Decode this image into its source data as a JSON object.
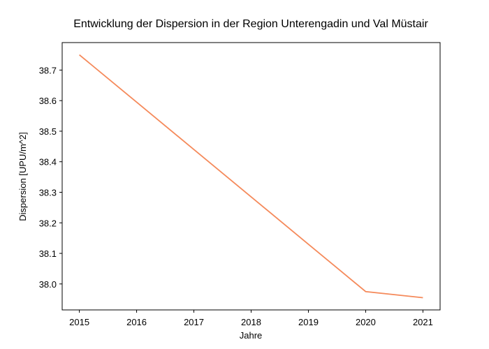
{
  "chart_data": {
    "type": "line",
    "title": "Entwicklung der Dispersion in der Region Unterengadin und Val Müstair",
    "xlabel": "Jahre",
    "ylabel": "Dispersion [UPU/m^2]",
    "x": [
      2015,
      2016,
      2017,
      2018,
      2019,
      2020,
      2021
    ],
    "series": [
      {
        "values": [
          38.75,
          38.595,
          38.44,
          38.285,
          38.13,
          37.975,
          37.955
        ],
        "color": "#f58a5b"
      }
    ],
    "xticks": [
      "2015",
      "2016",
      "2017",
      "2018",
      "2019",
      "2020",
      "2021"
    ],
    "yticks": [
      "38.0",
      "38.1",
      "38.2",
      "38.3",
      "38.4",
      "38.5",
      "38.6",
      "38.7"
    ],
    "xlim": [
      2014.7,
      2021.3
    ],
    "ylim": [
      37.915,
      38.79
    ],
    "grid": false,
    "legend": "none"
  }
}
